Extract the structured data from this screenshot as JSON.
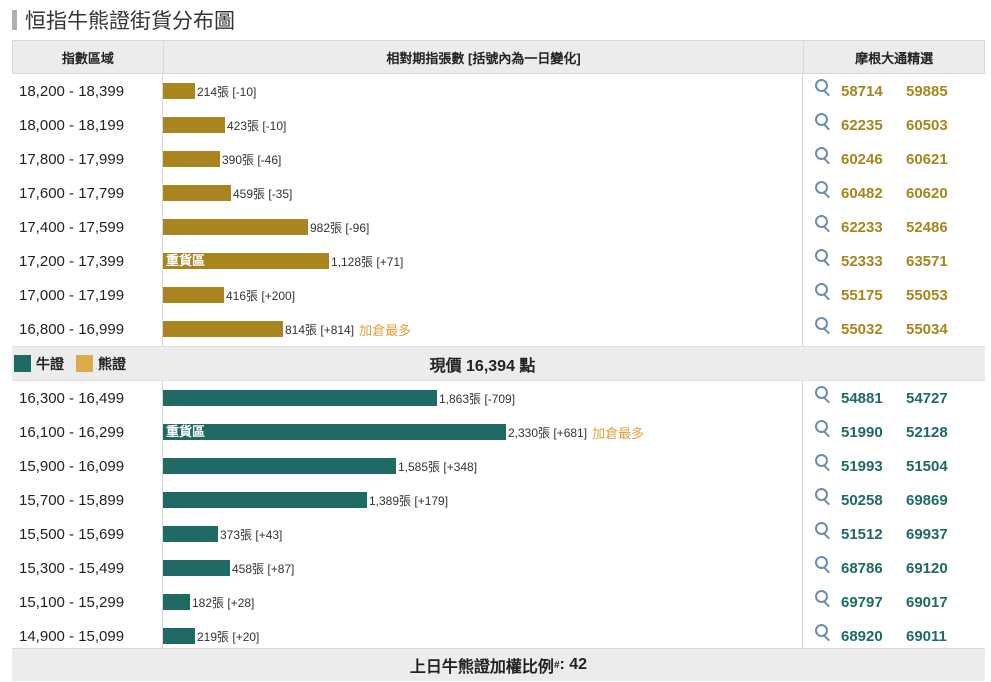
{
  "title": "恒指牛熊證街貨分布圖",
  "header": {
    "col_range": "指數區域",
    "col_bar": "相對期指張數 [括號內為一日變化]",
    "col_picks": "摩根大通精選"
  },
  "bear_rows": [
    {
      "range": "18,200 - 18,399",
      "contracts": 214,
      "value_text": "214張 [-10]",
      "heavy": "",
      "note": "",
      "codes": [
        "58714",
        "59885"
      ]
    },
    {
      "range": "18,000 - 18,199",
      "contracts": 423,
      "value_text": "423張 [-10]",
      "heavy": "",
      "note": "",
      "codes": [
        "62235",
        "60503"
      ]
    },
    {
      "range": "17,800 - 17,999",
      "contracts": 390,
      "value_text": "390張 [-46]",
      "heavy": "",
      "note": "",
      "codes": [
        "60246",
        "60621"
      ]
    },
    {
      "range": "17,600 - 17,799",
      "contracts": 459,
      "value_text": "459張 [-35]",
      "heavy": "",
      "note": "",
      "codes": [
        "60482",
        "60620"
      ]
    },
    {
      "range": "17,400 - 17,599",
      "contracts": 982,
      "value_text": "982張 [-96]",
      "heavy": "",
      "note": "",
      "codes": [
        "62233",
        "52486"
      ]
    },
    {
      "range": "17,200 - 17,399",
      "contracts": 1128,
      "value_text": "1,128張 [+71]",
      "heavy": "重貨區",
      "note": "",
      "codes": [
        "52333",
        "63571"
      ]
    },
    {
      "range": "17,000 - 17,199",
      "contracts": 416,
      "value_text": "416張 [+200]",
      "heavy": "",
      "note": "",
      "codes": [
        "55175",
        "55053"
      ]
    },
    {
      "range": "16,800 - 16,999",
      "contracts": 814,
      "value_text": "814張 [+814]",
      "heavy": "",
      "note": "加倉最多",
      "codes": [
        "55032",
        "55034"
      ]
    }
  ],
  "legend": {
    "bull": "牛證",
    "bear": "熊證"
  },
  "current_price": "現價 16,394 點",
  "bull_rows": [
    {
      "range": "16,300 - 16,499",
      "contracts": 1863,
      "value_text": "1,863張 [-709]",
      "heavy": "",
      "note": "",
      "codes": [
        "54881",
        "54727"
      ]
    },
    {
      "range": "16,100 - 16,299",
      "contracts": 2330,
      "value_text": "2,330張 [+681]",
      "heavy": "重貨區",
      "note": "加倉最多",
      "codes": [
        "51990",
        "52128"
      ]
    },
    {
      "range": "15,900 - 16,099",
      "contracts": 1585,
      "value_text": "1,585張 [+348]",
      "heavy": "",
      "note": "",
      "codes": [
        "51993",
        "51504"
      ]
    },
    {
      "range": "15,700 - 15,899",
      "contracts": 1389,
      "value_text": "1,389張 [+179]",
      "heavy": "",
      "note": "",
      "codes": [
        "50258",
        "69869"
      ]
    },
    {
      "range": "15,500 - 15,699",
      "contracts": 373,
      "value_text": "373張 [+43]",
      "heavy": "",
      "note": "",
      "codes": [
        "51512",
        "69937"
      ]
    },
    {
      "range": "15,300 - 15,499",
      "contracts": 458,
      "value_text": "458張 [+87]",
      "heavy": "",
      "note": "",
      "codes": [
        "68786",
        "69120"
      ]
    },
    {
      "range": "15,100 - 15,299",
      "contracts": 182,
      "value_text": "182張 [+28]",
      "heavy": "",
      "note": "",
      "codes": [
        "69797",
        "69017"
      ]
    },
    {
      "range": "14,900 - 15,099",
      "contracts": 219,
      "value_text": "219張 [+20]",
      "heavy": "",
      "note": "",
      "codes": [
        "68920",
        "69011"
      ]
    }
  ],
  "footer": {
    "label": "上日牛熊證加權比例",
    "mark": "#",
    "value": ": 42"
  },
  "colors": {
    "bull": "#1f6a64",
    "bear": "#a8851e",
    "note": "#e0a040"
  },
  "icons": {
    "search": "magnifier-icon"
  }
}
